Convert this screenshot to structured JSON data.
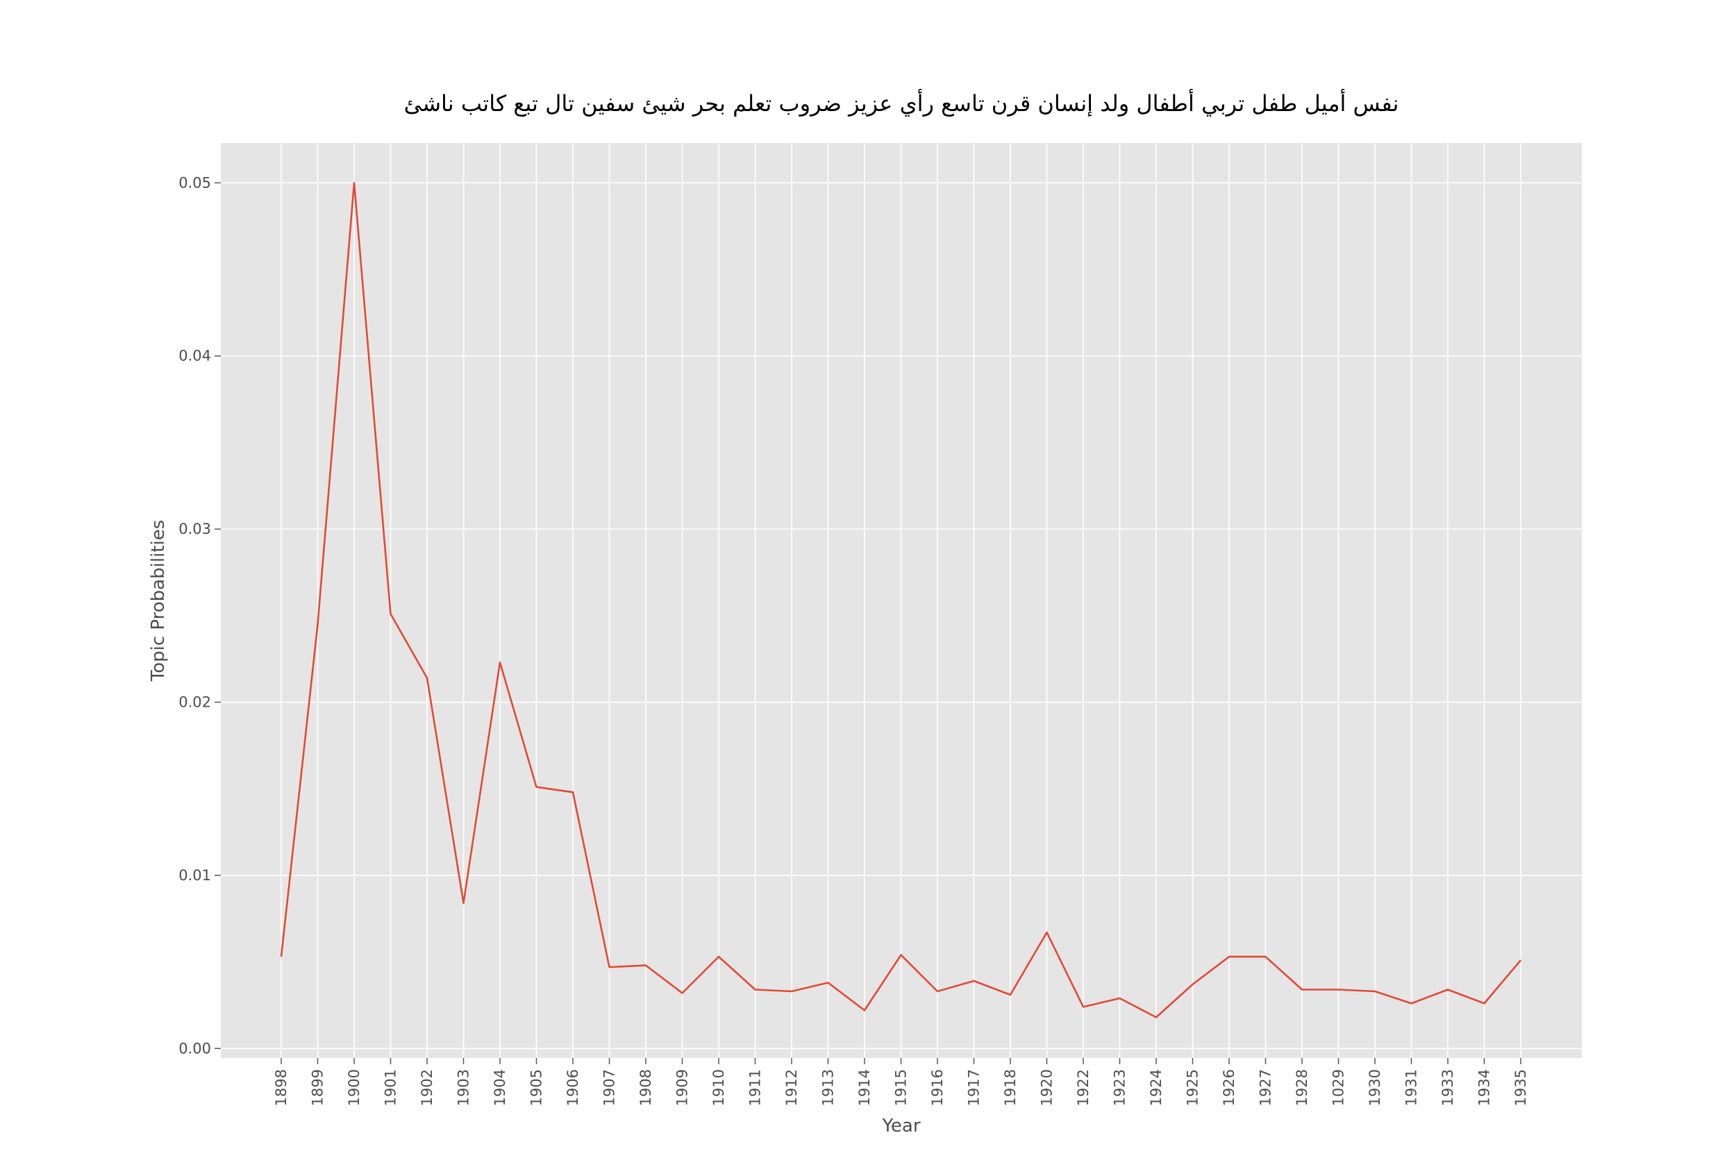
{
  "chart_data": {
    "type": "line",
    "title": "نفس أميل طفل تربي أطفال ولد إنسان قرن تاسع رأي عزيز ضروب تعلم بحر شيئ سفين تال تبع كاتب ناشئ",
    "xlabel": "Year",
    "ylabel": "Topic Probabilities",
    "categories": [
      "1898",
      "1899",
      "1900",
      "1901",
      "1902",
      "1903",
      "1904",
      "1905",
      "1906",
      "1907",
      "1908",
      "1909",
      "1910",
      "1911",
      "1912",
      "1913",
      "1914",
      "1915",
      "1916",
      "1917",
      "1918",
      "1920",
      "1922",
      "1923",
      "1924",
      "1925",
      "1926",
      "1927",
      "1928",
      "1029",
      "1930",
      "1931",
      "1933",
      "1934",
      "1935"
    ],
    "values": [
      0.0053,
      0.0245,
      0.05,
      0.0251,
      0.0214,
      0.0084,
      0.0223,
      0.0151,
      0.0148,
      0.0047,
      0.0048,
      0.0032,
      0.0053,
      0.0034,
      0.0033,
      0.0038,
      0.0022,
      0.0054,
      0.0033,
      0.0039,
      0.0031,
      0.0067,
      0.0024,
      0.0029,
      0.0018,
      0.0037,
      0.0053,
      0.0053,
      0.0034,
      0.0034,
      0.0033,
      0.0026,
      0.0034,
      0.0026,
      0.0051
    ],
    "ylim": [
      -0.00055,
      0.0523
    ],
    "yticks": [
      0.0,
      0.01,
      0.02,
      0.03,
      0.04,
      0.05
    ],
    "ytick_labels": [
      "0.00",
      "0.01",
      "0.02",
      "0.03",
      "0.04",
      "0.05"
    ],
    "grid": true,
    "legend": "none",
    "colors": {
      "line": "#e24a33",
      "plot_bg": "#e5e5e5",
      "grid": "#ffffff",
      "text": "#4d4d4d"
    }
  }
}
